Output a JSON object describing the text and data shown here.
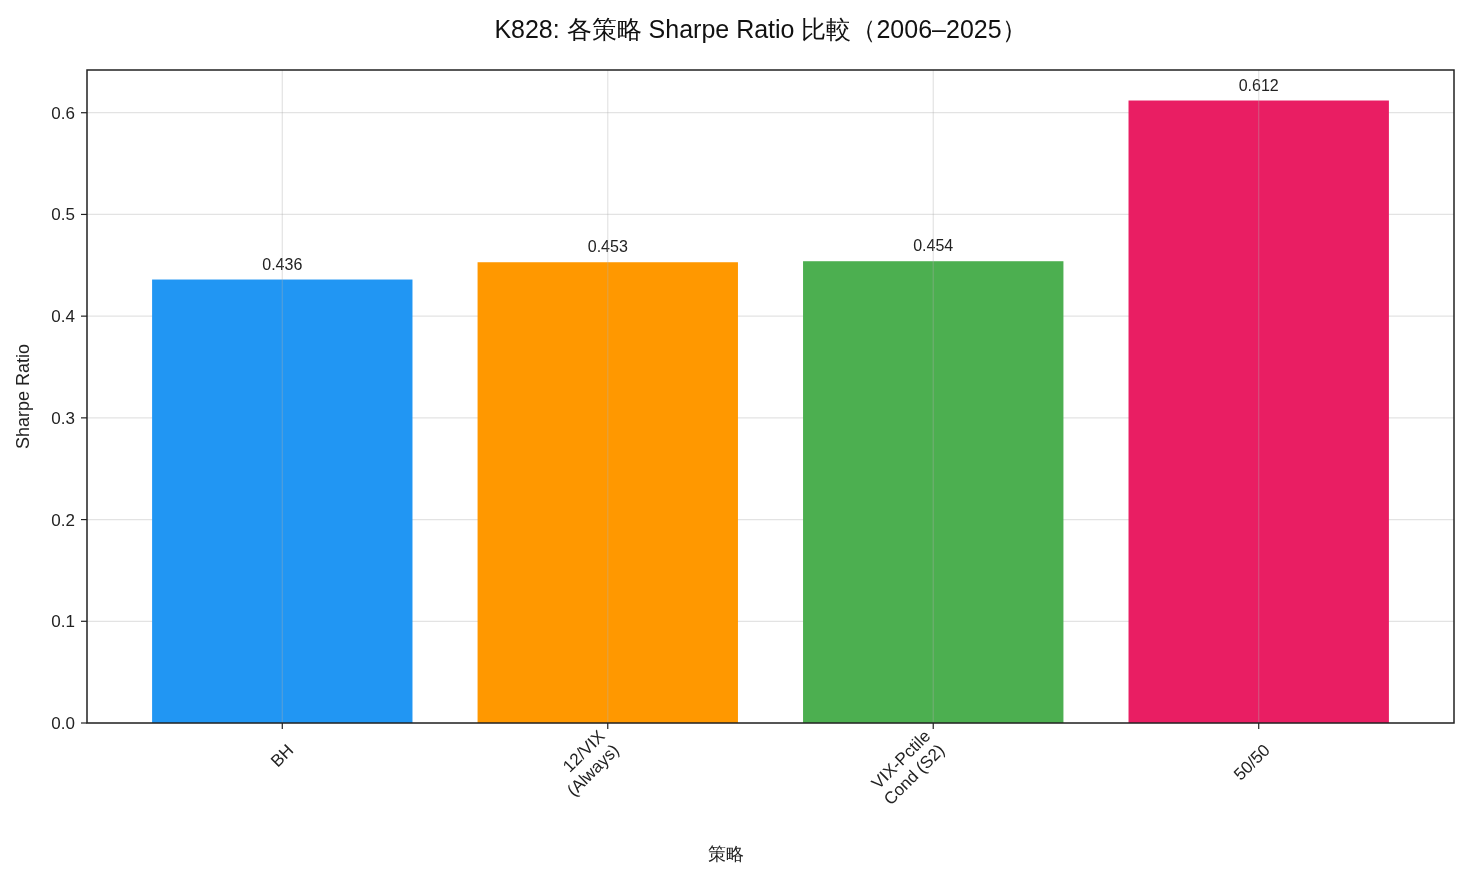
{
  "chart_data": {
    "type": "bar",
    "title": "K828: 各策略 Sharpe Ratio 比較（2006–2025）",
    "xlabel": "策略",
    "ylabel": "Sharpe Ratio",
    "categories": [
      "BH",
      "12/VIX\n(Always)",
      "VIX-Pctile\nCond (S2)",
      "50/50"
    ],
    "values": [
      0.436,
      0.453,
      0.454,
      0.612
    ],
    "colors": [
      "#2196f3",
      "#ff9800",
      "#4caf50",
      "#e91e63"
    ],
    "ylim": [
      0,
      0.642
    ],
    "yticks": [
      {
        "value": 0,
        "label": "0.0"
      },
      0.1,
      0.2,
      0.3,
      0.4,
      0.5,
      0.6
    ],
    "grid": true,
    "data_labels": true
  }
}
